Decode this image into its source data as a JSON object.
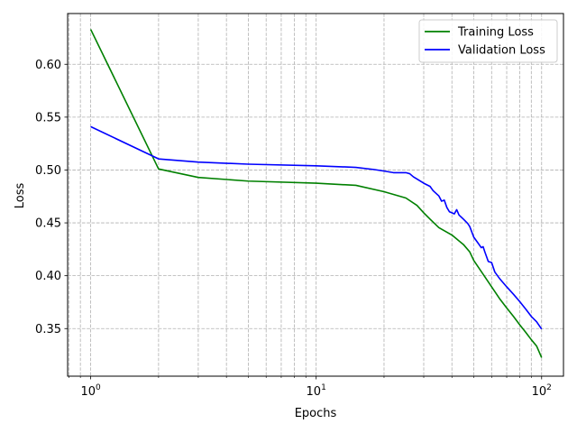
{
  "chart_data": {
    "type": "line",
    "xscale": "log",
    "xlabel": "Epochs",
    "ylabel": "Loss",
    "xlim": [
      0.79,
      125
    ],
    "ylim": [
      0.305,
      0.648
    ],
    "grid": true,
    "legend": "top-right",
    "xticks": [
      {
        "value": 1,
        "base": "10",
        "exp": "0"
      },
      {
        "value": 10,
        "base": "10",
        "exp": "1"
      },
      {
        "value": 100,
        "base": "10",
        "exp": "2"
      }
    ],
    "yticks": [
      "0.35",
      "0.40",
      "0.45",
      "0.50",
      "0.55",
      "0.60"
    ],
    "series": [
      {
        "name": "Training Loss",
        "color": "#008000",
        "x": [
          1,
          2,
          3,
          5,
          10,
          15,
          20,
          25,
          28,
          30,
          32,
          35,
          40,
          45,
          48,
          50,
          55,
          60,
          65,
          70,
          75,
          80,
          85,
          90,
          95,
          100
        ],
        "y": [
          0.633,
          0.501,
          0.493,
          0.4895,
          0.4875,
          0.4855,
          0.4795,
          0.4735,
          0.4665,
          0.4595,
          0.4535,
          0.4455,
          0.4385,
          0.4295,
          0.4225,
          0.4145,
          0.4015,
          0.3895,
          0.3785,
          0.3695,
          0.3615,
          0.3535,
          0.3465,
          0.3395,
          0.3335,
          0.3225
        ]
      },
      {
        "name": "Validation Loss",
        "color": "#0000ff",
        "x": [
          1,
          2,
          3,
          5,
          10,
          15,
          18,
          20,
          22,
          25,
          26,
          27,
          28,
          30,
          32,
          33,
          35,
          36,
          37,
          38,
          39,
          40,
          41,
          42,
          43,
          45,
          47,
          48,
          50,
          52,
          54,
          55,
          56,
          58,
          60,
          62,
          65,
          70,
          75,
          80,
          85,
          90,
          95,
          100
        ],
        "y": [
          0.541,
          0.5105,
          0.5075,
          0.5055,
          0.504,
          0.5025,
          0.5005,
          0.499,
          0.4975,
          0.4975,
          0.4965,
          0.4935,
          0.4915,
          0.4875,
          0.4845,
          0.4805,
          0.4755,
          0.4705,
          0.4715,
          0.4645,
          0.4605,
          0.4595,
          0.4585,
          0.4625,
          0.4575,
          0.4535,
          0.4495,
          0.4465,
          0.4365,
          0.4315,
          0.4265,
          0.4275,
          0.4225,
          0.4135,
          0.4125,
          0.4035,
          0.3975,
          0.3895,
          0.3825,
          0.3755,
          0.3685,
          0.3615,
          0.3565,
          0.3495
        ]
      }
    ]
  }
}
